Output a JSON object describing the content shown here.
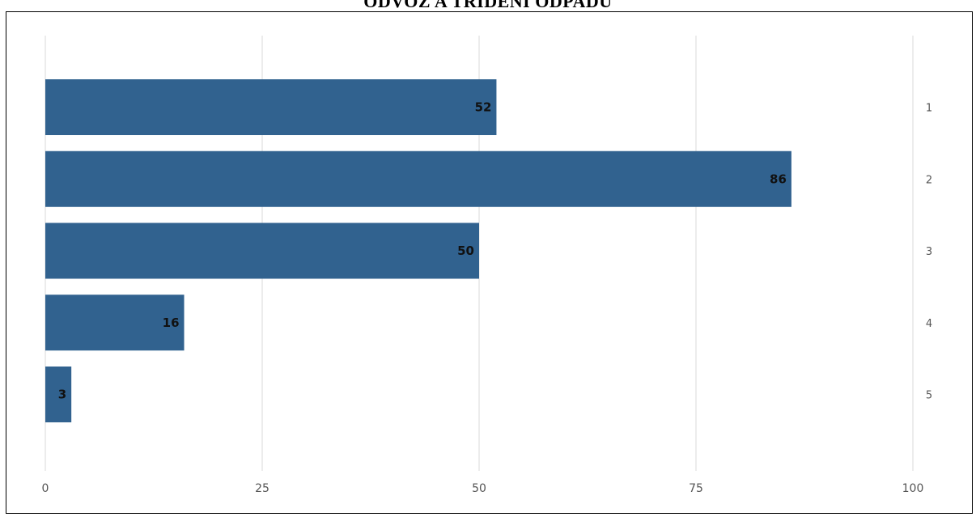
{
  "chart_data": {
    "type": "bar",
    "orientation": "horizontal",
    "title": "ODVOZ A TŘÍDĚNÍ ODPADU",
    "categories": [
      "1",
      "2",
      "3",
      "4",
      "5"
    ],
    "values": [
      52,
      86,
      50,
      16,
      3
    ],
    "xlim": [
      0,
      100
    ],
    "xticks": [
      "0",
      "25",
      "50",
      "75",
      "100"
    ],
    "category_axis_position": "right",
    "data_labels": true,
    "grid": true,
    "bar_color": "#31628f",
    "grid_color": "#d9d9d9",
    "xlabel": "",
    "ylabel": ""
  }
}
